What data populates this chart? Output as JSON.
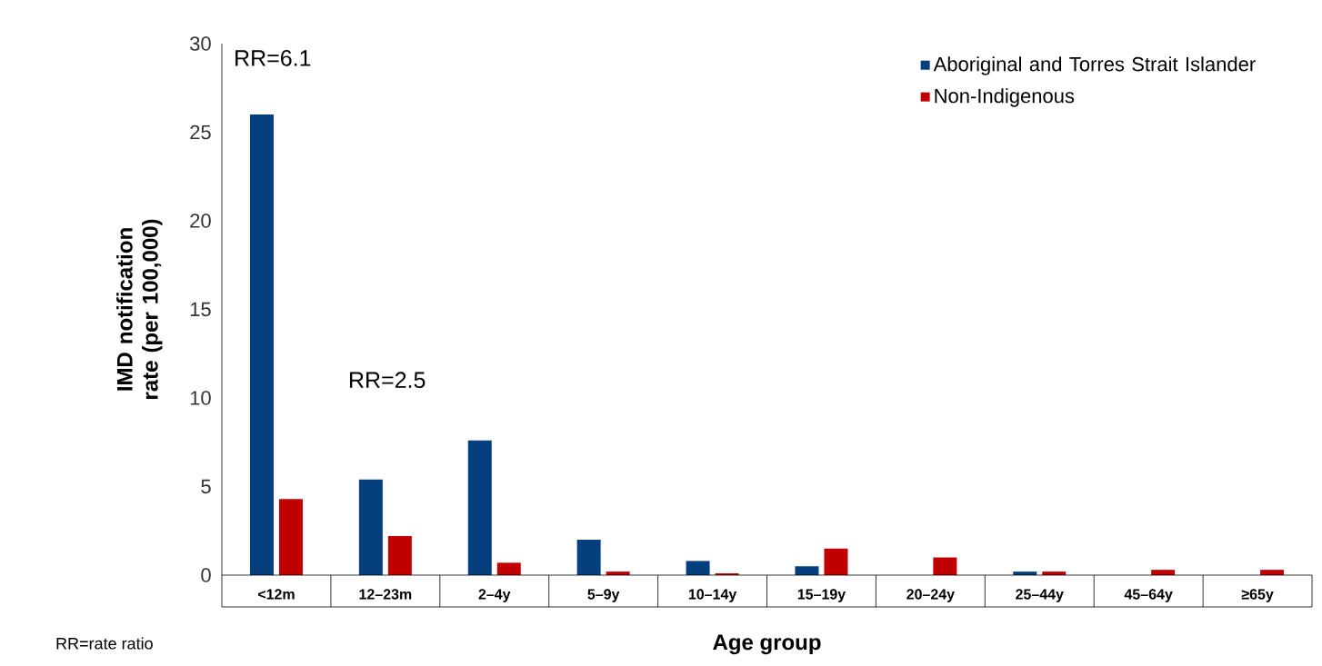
{
  "chart_data": {
    "type": "bar",
    "xlabel": "Age group",
    "ylabel": "IMD notification rate (per 100,000)",
    "categories": [
      "<12m",
      "12–23m",
      "2–4y",
      "5–9y",
      "10–14y",
      "15–19y",
      "20–24y",
      "25–44y",
      "45–64y",
      "≥65y"
    ],
    "series": [
      {
        "name": "Aboriginal and Torres Strait Islander",
        "color": "#053f7d",
        "values": [
          26.0,
          5.4,
          7.6,
          2.0,
          0.8,
          0.5,
          0,
          0.2,
          0,
          0
        ]
      },
      {
        "name": "Non-Indigenous",
        "color": "#c00000",
        "values": [
          4.3,
          2.2,
          0.7,
          0.2,
          0.1,
          1.5,
          1.0,
          0.2,
          0.3,
          0.3
        ]
      }
    ],
    "ylim": [
      0,
      30
    ],
    "yticks": [
      0,
      5,
      10,
      15,
      20,
      25,
      30
    ],
    "grid": false,
    "legend": "top right",
    "annotations": [
      "RR=6.1",
      "RR=2.5",
      "RR=rate ratio"
    ]
  }
}
